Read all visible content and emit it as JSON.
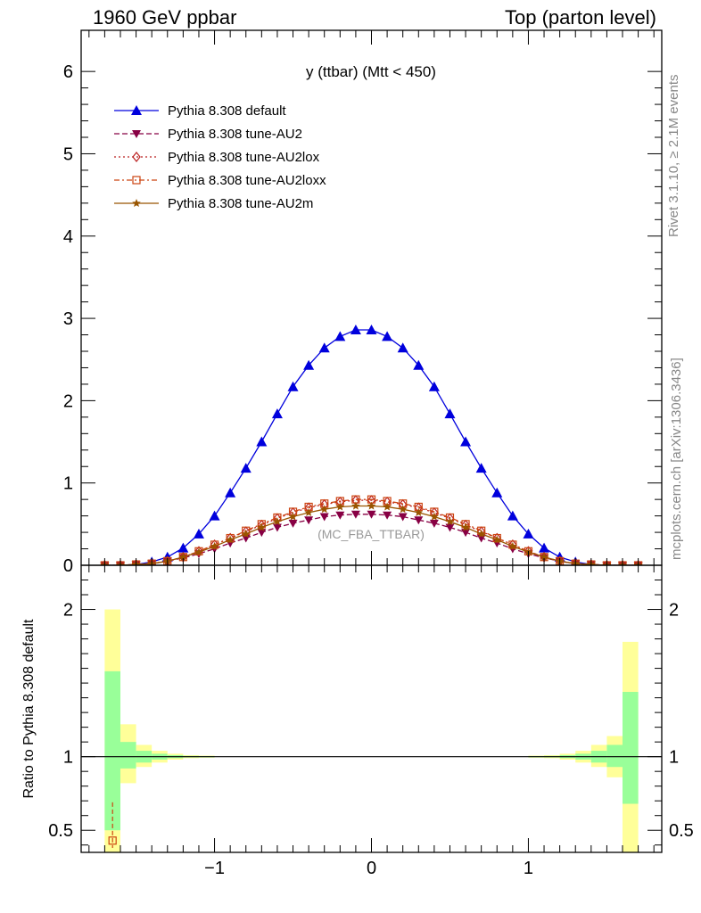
{
  "header": {
    "left": "1960 GeV ppbar",
    "right": "Top (parton level)"
  },
  "side_labels": {
    "rivet": "Rivet 3.1.10, ≥ 2.1M events",
    "mcplots": "mcplots.cern.ch [arXiv:1306.3436]"
  },
  "chart_data": [
    {
      "type": "line",
      "panel": "main",
      "title": "y (ttbar) (Mtt < 450)",
      "watermark": "(MC_FBA_TTBAR)",
      "xlabel": "",
      "ylabel": "",
      "xlim": [
        -1.85,
        1.85
      ],
      "ylim": [
        0,
        6.5
      ],
      "yticks": [
        0,
        1,
        2,
        3,
        4,
        5,
        6
      ],
      "grid": false,
      "legend_position": "top-left",
      "x": [
        -1.7,
        -1.6,
        -1.5,
        -1.4,
        -1.3,
        -1.2,
        -1.1,
        -1.0,
        -0.9,
        -0.8,
        -0.7,
        -0.6,
        -0.5,
        -0.4,
        -0.3,
        -0.2,
        -0.1,
        0.0,
        0.1,
        0.2,
        0.3,
        0.4,
        0.5,
        0.6,
        0.7,
        0.8,
        0.9,
        1.0,
        1.1,
        1.2,
        1.3,
        1.4,
        1.5,
        1.6,
        1.7
      ],
      "series": [
        {
          "name": "Pythia 8.308 default",
          "color": "#0000dd",
          "marker": "triangle-up",
          "dash": "solid",
          "values": [
            0.0,
            0.0,
            0.01,
            0.04,
            0.1,
            0.21,
            0.38,
            0.6,
            0.88,
            1.18,
            1.5,
            1.84,
            2.17,
            2.43,
            2.64,
            2.78,
            2.86,
            2.86,
            2.78,
            2.64,
            2.43,
            2.17,
            1.84,
            1.5,
            1.18,
            0.88,
            0.6,
            0.38,
            0.21,
            0.1,
            0.04,
            0.01,
            0.0,
            0.0,
            0.0
          ]
        },
        {
          "name": "Pythia 8.308 tune-AU2",
          "color": "#880044",
          "marker": "triangle-down",
          "dash": "6,3",
          "values": [
            0.0,
            0.0,
            0.01,
            0.02,
            0.05,
            0.09,
            0.14,
            0.2,
            0.27,
            0.33,
            0.4,
            0.46,
            0.51,
            0.55,
            0.59,
            0.61,
            0.62,
            0.62,
            0.61,
            0.59,
            0.55,
            0.51,
            0.46,
            0.4,
            0.33,
            0.27,
            0.2,
            0.14,
            0.09,
            0.05,
            0.02,
            0.01,
            0.0,
            0.0,
            0.0
          ]
        },
        {
          "name": "Pythia 8.308 tune-AU2lox",
          "color": "#bb2222",
          "marker": "diamond-open",
          "dash": "2,3",
          "values": [
            0.0,
            0.0,
            0.01,
            0.02,
            0.05,
            0.1,
            0.17,
            0.25,
            0.33,
            0.41,
            0.49,
            0.57,
            0.64,
            0.7,
            0.74,
            0.77,
            0.79,
            0.79,
            0.77,
            0.74,
            0.7,
            0.64,
            0.57,
            0.49,
            0.41,
            0.33,
            0.25,
            0.17,
            0.1,
            0.05,
            0.02,
            0.01,
            0.0,
            0.0,
            0.0
          ]
        },
        {
          "name": "Pythia 8.308 tune-AU2loxx",
          "color": "#cc4411",
          "marker": "square-open",
          "dash": "6,3,2,3",
          "values": [
            0.0,
            0.0,
            0.01,
            0.02,
            0.05,
            0.1,
            0.17,
            0.25,
            0.33,
            0.42,
            0.5,
            0.58,
            0.65,
            0.71,
            0.75,
            0.78,
            0.8,
            0.8,
            0.78,
            0.75,
            0.71,
            0.65,
            0.58,
            0.5,
            0.42,
            0.33,
            0.25,
            0.17,
            0.1,
            0.05,
            0.02,
            0.01,
            0.0,
            0.0,
            0.0
          ]
        },
        {
          "name": "Pythia 8.308 tune-AU2m",
          "color": "#995500",
          "marker": "star",
          "dash": "solid",
          "values": [
            0.0,
            0.0,
            0.01,
            0.02,
            0.05,
            0.1,
            0.16,
            0.23,
            0.31,
            0.38,
            0.46,
            0.53,
            0.59,
            0.64,
            0.68,
            0.71,
            0.72,
            0.72,
            0.71,
            0.68,
            0.64,
            0.59,
            0.53,
            0.46,
            0.38,
            0.31,
            0.23,
            0.16,
            0.1,
            0.05,
            0.02,
            0.01,
            0.0,
            0.0,
            0.0
          ]
        }
      ]
    },
    {
      "type": "area",
      "panel": "ratio",
      "ylabel": "Ratio to Pythia 8.308 default",
      "xlim": [
        -1.85,
        1.85
      ],
      "ylim": [
        0.35,
        2.3
      ],
      "yticks": [
        0.5,
        1,
        2
      ],
      "xticks": [
        -1,
        0,
        1
      ],
      "reference_line": 1,
      "band_colors": {
        "inner": "#99ff99",
        "outer": "#ffff99"
      },
      "bins": [
        {
          "xlo": -1.7,
          "xhi": -1.6,
          "inner": [
            0.5,
            1.58
          ],
          "outer": [
            0.35,
            2.0
          ]
        },
        {
          "xlo": -1.6,
          "xhi": -1.5,
          "inner": [
            0.92,
            1.1
          ],
          "outer": [
            0.82,
            1.22
          ]
        },
        {
          "xlo": -1.5,
          "xhi": -1.4,
          "inner": [
            0.96,
            1.04
          ],
          "outer": [
            0.93,
            1.08
          ]
        },
        {
          "xlo": -1.4,
          "xhi": -1.3,
          "inner": [
            0.98,
            1.02
          ],
          "outer": [
            0.96,
            1.04
          ]
        },
        {
          "xlo": -1.3,
          "xhi": -1.2,
          "inner": [
            0.99,
            1.01
          ],
          "outer": [
            0.98,
            1.02
          ]
        },
        {
          "xlo": -1.2,
          "xhi": -1.1,
          "inner": [
            0.995,
            1.005
          ],
          "outer": [
            0.99,
            1.01
          ]
        },
        {
          "xlo": -1.1,
          "xhi": -1.0,
          "inner": [
            0.996,
            1.004
          ],
          "outer": [
            0.993,
            1.007
          ]
        },
        {
          "xlo": 1.0,
          "xhi": 1.1,
          "inner": [
            0.996,
            1.004
          ],
          "outer": [
            0.993,
            1.007
          ]
        },
        {
          "xlo": 1.1,
          "xhi": 1.2,
          "inner": [
            0.995,
            1.005
          ],
          "outer": [
            0.99,
            1.01
          ]
        },
        {
          "xlo": 1.2,
          "xhi": 1.3,
          "inner": [
            0.99,
            1.01
          ],
          "outer": [
            0.98,
            1.02
          ]
        },
        {
          "xlo": 1.3,
          "xhi": 1.4,
          "inner": [
            0.98,
            1.02
          ],
          "outer": [
            0.96,
            1.04
          ]
        },
        {
          "xlo": 1.4,
          "xhi": 1.5,
          "inner": [
            0.96,
            1.04
          ],
          "outer": [
            0.93,
            1.08
          ]
        },
        {
          "xlo": 1.5,
          "xhi": 1.6,
          "inner": [
            0.93,
            1.08
          ],
          "outer": [
            0.86,
            1.14
          ]
        },
        {
          "xlo": 1.6,
          "xhi": 1.7,
          "inner": [
            0.68,
            1.44
          ],
          "outer": [
            0.35,
            1.78
          ]
        }
      ],
      "markers": [
        {
          "series": "Pythia 8.308 tune-AU2loxx",
          "x": -1.65,
          "y": 0.43,
          "err": [
            0.38,
            0.69
          ],
          "color": "#cc4411",
          "marker": "square-open"
        }
      ]
    }
  ]
}
